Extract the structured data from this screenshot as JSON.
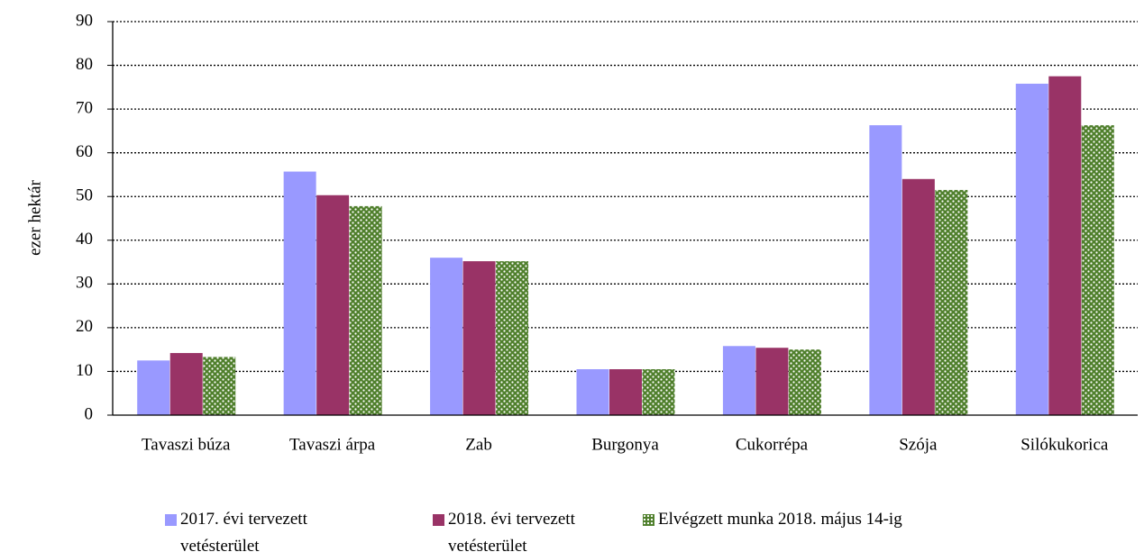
{
  "chart_data": {
    "type": "bar",
    "y_label": "ezer hektár",
    "categories": [
      "Tavaszi búza",
      "Tavaszi árpa",
      "Zab",
      "Burgonya",
      "Cukorrépa",
      "Szója",
      "Silókukorica"
    ],
    "series": [
      {
        "name": "2017. évi tervezett vetésterület",
        "color": "#9999ff",
        "values": [
          12.5,
          55.7,
          36,
          10.5,
          15.8,
          66.3,
          75.8
        ]
      },
      {
        "name": "2018. évi tervezett vetésterület",
        "color": "#993366",
        "values": [
          14.2,
          50.3,
          35.2,
          10.5,
          15.4,
          54,
          77.5
        ]
      },
      {
        "name": "Elvégzett munka 2018. május 14-ig",
        "color": "#4f7f2c",
        "pattern": "dots",
        "values": [
          13.3,
          47.8,
          35.2,
          10.5,
          15.0,
          51.5,
          66.3
        ]
      }
    ],
    "ylim": [
      0,
      90
    ],
    "yticks": [
      0,
      10,
      20,
      30,
      40,
      50,
      60,
      70,
      80,
      90
    ],
    "grid": true,
    "legend": "bottom"
  }
}
